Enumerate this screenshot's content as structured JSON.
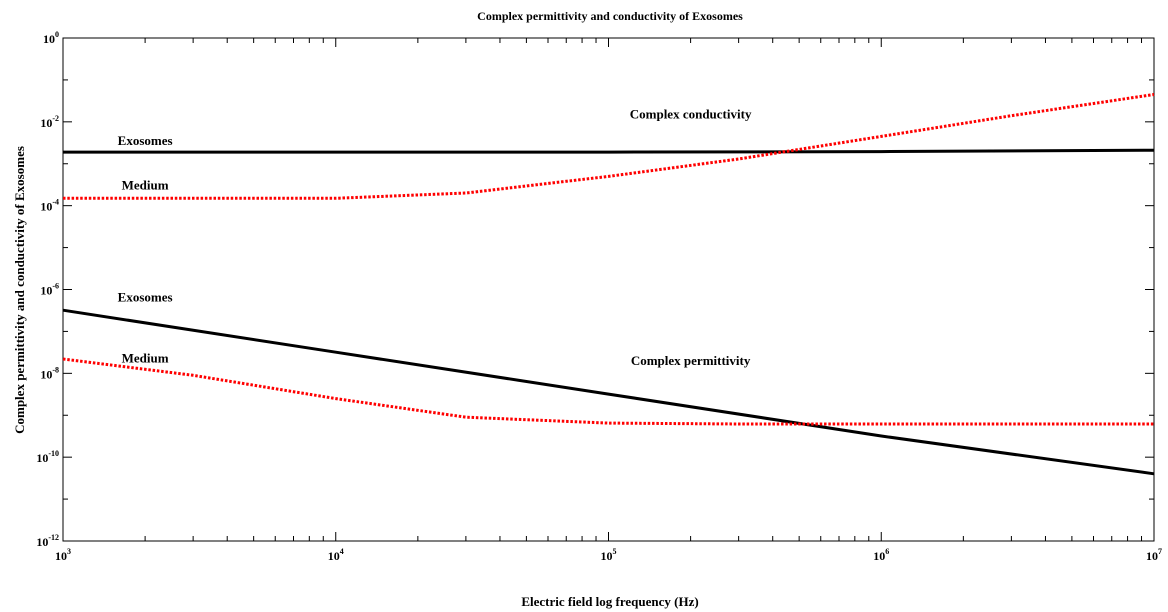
{
  "chart_data": {
    "type": "line",
    "title": "Complex permittivity and conductivity of Exosomes",
    "xlabel": "Electric field log frequency (Hz)",
    "ylabel": "Complex permittivity and conductivity of Exosomes",
    "x_scale": "log",
    "y_scale": "log",
    "xlim": [
      1000,
      10000000
    ],
    "ylim": [
      1e-12,
      1
    ],
    "x_ticks": [
      {
        "base": "10",
        "exp": "3",
        "value": 1000
      },
      {
        "base": "10",
        "exp": "4",
        "value": 10000
      },
      {
        "base": "10",
        "exp": "5",
        "value": 100000
      },
      {
        "base": "10",
        "exp": "6",
        "value": 1000000
      },
      {
        "base": "10",
        "exp": "7",
        "value": 10000000
      }
    ],
    "y_ticks": [
      {
        "base": "10",
        "exp": "-12",
        "value": 1e-12
      },
      {
        "base": "10",
        "exp": "-10",
        "value": 1e-10
      },
      {
        "base": "10",
        "exp": "-8",
        "value": 1e-08
      },
      {
        "base": "10",
        "exp": "-6",
        "value": 1e-06
      },
      {
        "base": "10",
        "exp": "-4",
        "value": 0.0001
      },
      {
        "base": "10",
        "exp": "-2",
        "value": 0.01
      },
      {
        "base": "10",
        "exp": "0",
        "value": 1
      }
    ],
    "grid": false,
    "series": [
      {
        "name": "Exosomes",
        "group": "Complex conductivity",
        "color": "#000000",
        "style": "solid",
        "x": [
          1000,
          10000,
          100000,
          1000000,
          10000000
        ],
        "y": [
          0.0019,
          0.0019,
          0.0019,
          0.00195,
          0.0021
        ]
      },
      {
        "name": "Medium",
        "group": "Complex conductivity",
        "color": "#ff0000",
        "style": "dotted",
        "x": [
          1000,
          3000,
          10000,
          30000,
          100000,
          300000,
          1000000,
          3000000,
          10000000
        ],
        "y": [
          0.00015,
          0.00015,
          0.00015,
          0.0002,
          0.0005,
          0.0013,
          0.0045,
          0.014,
          0.045
        ]
      },
      {
        "name": "Exosomes",
        "group": "Complex permittivity",
        "color": "#000000",
        "style": "solid",
        "x": [
          1000,
          10000,
          100000,
          1000000,
          10000000
        ],
        "y": [
          3.2e-07,
          3.2e-08,
          3.2e-09,
          3.2e-10,
          4e-11
        ]
      },
      {
        "name": "Medium",
        "group": "Complex permittivity",
        "color": "#ff0000",
        "style": "dotted",
        "x": [
          1000,
          3000,
          10000,
          30000,
          100000,
          300000,
          1000000,
          3000000,
          10000000
        ],
        "y": [
          2.2e-08,
          9e-09,
          2.5e-09,
          9e-10,
          6.5e-10,
          6.2e-10,
          6.2e-10,
          6.2e-10,
          6.2e-10
        ]
      }
    ],
    "annotations": [
      {
        "text": "Complex conductivity",
        "x": 200000,
        "y": 0.012
      },
      {
        "text": "Exosomes",
        "x": 2000,
        "y": 0.0028
      },
      {
        "text": "Medium",
        "x": 2000,
        "y": 0.00024
      },
      {
        "text": "Complex permittivity",
        "x": 200000,
        "y": 1.6e-08
      },
      {
        "text": "Exosomes",
        "x": 2000,
        "y": 5.2e-07
      },
      {
        "text": "Medium",
        "x": 2000,
        "y": 1.8e-08
      }
    ]
  }
}
